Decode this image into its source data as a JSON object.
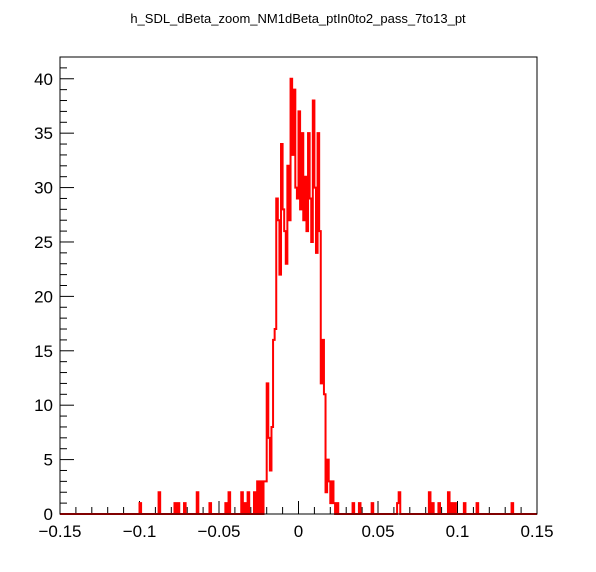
{
  "chart_data": {
    "type": "line",
    "title": "h_SDL_dBeta_zoom_NM1dBeta_ptIn0to2_pass_7to13_pt",
    "xlabel": "",
    "ylabel": "",
    "xlim": [
      -0.15,
      0.15
    ],
    "ylim": [
      0,
      42
    ],
    "grid": false,
    "x_tick_labels": [
      "−0.15",
      "−0.1",
      "−0.05",
      "0",
      "0.05",
      "0.1",
      "0.15"
    ],
    "y_tick_labels": [
      "0",
      "5",
      "10",
      "15",
      "20",
      "25",
      "30",
      "35",
      "40"
    ],
    "bin_width": 0.001,
    "series": [
      {
        "color": "#ff0000",
        "x": [
          -0.1,
          -0.088,
          -0.078,
          -0.076,
          -0.072,
          -0.064,
          -0.056,
          -0.046,
          -0.044,
          -0.036,
          -0.034,
          -0.032,
          -0.028,
          -0.026,
          -0.024,
          -0.022,
          -0.021,
          -0.02,
          -0.019,
          -0.018,
          -0.017,
          -0.016,
          -0.015,
          -0.014,
          -0.013,
          -0.012,
          -0.011,
          -0.01,
          -0.009,
          -0.008,
          -0.007,
          -0.006,
          -0.005,
          -0.004,
          -0.003,
          -0.002,
          -0.001,
          0.0,
          0.001,
          0.002,
          0.003,
          0.004,
          0.005,
          0.006,
          0.007,
          0.008,
          0.009,
          0.01,
          0.011,
          0.012,
          0.013,
          0.014,
          0.015,
          0.016,
          0.017,
          0.018,
          0.019,
          0.02,
          0.021,
          0.022,
          0.024,
          0.034,
          0.038,
          0.046,
          0.062,
          0.063,
          0.082,
          0.084,
          0.088,
          0.094,
          0.096,
          0.098,
          0.104,
          0.112,
          0.134
        ],
        "y": [
          1,
          2,
          1,
          1,
          1,
          2,
          1,
          1,
          2,
          2,
          1,
          2,
          2,
          3,
          3,
          3,
          3,
          12,
          7,
          4,
          8,
          16,
          17,
          29,
          27,
          22,
          34,
          28,
          26,
          23,
          32,
          27,
          40,
          33,
          39,
          30,
          29,
          37,
          28,
          35,
          27,
          31,
          26,
          35,
          29,
          25,
          38,
          30,
          24,
          35,
          26,
          12,
          16,
          11,
          2,
          5,
          3,
          1,
          3,
          1,
          1,
          1,
          1,
          1,
          1,
          2,
          2,
          1,
          1,
          2,
          1,
          1,
          1,
          1,
          1
        ]
      }
    ]
  }
}
